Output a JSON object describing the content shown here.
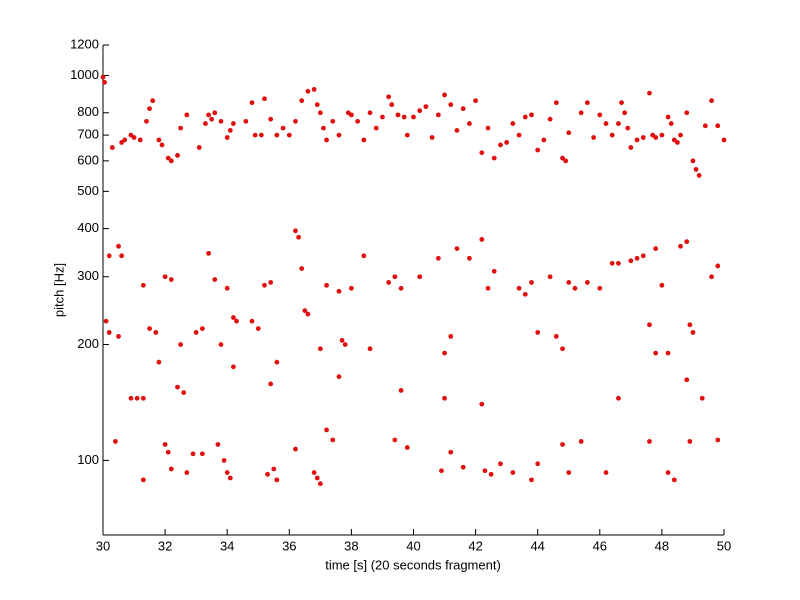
{
  "chart_data": {
    "type": "scatter",
    "xlabel": "time [s] (20 seconds fragment)",
    "ylabel": "pitch [Hz]",
    "color": "#e01010",
    "log_y": true,
    "xlim": [
      30,
      50
    ],
    "xticks": [
      30,
      32,
      34,
      36,
      38,
      40,
      42,
      44,
      46,
      48,
      50
    ],
    "ylim": [
      64,
      1200
    ],
    "yticks": [
      100,
      200,
      300,
      400,
      500,
      600,
      700,
      800,
      1000,
      1200
    ],
    "x": [
      30.0,
      30.05,
      30.3,
      30.6,
      30.7,
      30.9,
      31.0,
      31.2,
      31.4,
      31.5,
      31.6,
      31.8,
      31.9,
      32.1,
      32.2,
      32.4,
      32.5,
      32.7,
      33.1,
      33.3,
      33.4,
      33.5,
      33.6,
      33.8,
      34.0,
      34.1,
      34.2,
      34.6,
      34.8,
      34.9,
      35.1,
      35.2,
      35.4,
      35.6,
      35.8,
      36.0,
      36.2,
      36.4,
      36.6,
      36.8,
      36.9,
      37.0,
      37.1,
      37.2,
      37.4,
      37.6,
      37.9,
      38.0,
      38.2,
      38.4,
      38.6,
      38.8,
      39.0,
      39.2,
      39.3,
      39.5,
      39.7,
      39.8,
      40.0,
      40.2,
      40.4,
      40.6,
      40.8,
      41.0,
      41.2,
      41.4,
      41.6,
      41.8,
      42.0,
      42.2,
      42.4,
      42.6,
      42.8,
      43.0,
      43.2,
      43.4,
      43.6,
      43.8,
      44.0,
      44.2,
      44.4,
      44.6,
      44.8,
      44.9,
      45.0,
      45.4,
      45.6,
      45.8,
      46.0,
      46.2,
      46.4,
      46.6,
      46.7,
      46.8,
      46.9,
      47.0,
      47.2,
      47.4,
      47.6,
      47.7,
      47.8,
      48.0,
      48.2,
      48.3,
      48.4,
      48.5,
      48.6,
      48.8,
      49.0,
      49.1,
      49.2,
      49.4,
      49.6,
      49.8,
      50.0,
      30.2,
      30.5,
      30.6,
      31.3,
      31.5,
      31.7,
      32.0,
      32.2,
      32.5,
      33.0,
      33.2,
      33.4,
      33.6,
      33.8,
      34.0,
      34.2,
      34.3,
      34.8,
      35.0,
      35.2,
      35.4,
      35.6,
      36.2,
      36.3,
      36.4,
      36.5,
      36.6,
      37.0,
      37.2,
      37.6,
      37.7,
      37.8,
      38.0,
      38.4,
      38.6,
      39.2,
      39.4,
      39.6,
      40.2,
      40.8,
      41.0,
      41.2,
      41.4,
      41.8,
      42.2,
      42.4,
      42.6,
      43.4,
      43.6,
      43.8,
      44.0,
      44.4,
      44.6,
      44.8,
      45.0,
      45.2,
      45.6,
      46.0,
      46.4,
      46.6,
      47.0,
      47.2,
      47.4,
      47.6,
      47.8,
      48.0,
      48.2,
      48.6,
      48.8,
      48.9,
      49.0,
      49.6,
      49.8,
      30.1,
      30.2,
      30.5,
      30.4,
      30.9,
      31.1,
      31.3,
      31.3,
      31.8,
      32.0,
      32.1,
      32.2,
      32.4,
      32.6,
      32.7,
      32.9,
      33.2,
      33.7,
      33.9,
      34.0,
      34.1,
      34.2,
      35.3,
      35.4,
      35.5,
      35.6,
      36.2,
      36.8,
      36.9,
      37.0,
      37.2,
      37.4,
      37.6,
      39.4,
      39.6,
      39.8,
      40.9,
      41.0,
      41.2,
      41.6,
      42.2,
      42.3,
      42.5,
      42.8,
      43.2,
      43.8,
      44.0,
      44.8,
      45.0,
      45.4,
      46.2,
      46.6,
      47.6,
      47.8,
      48.2,
      48.4,
      48.8,
      48.9,
      49.3,
      49.8
    ],
    "y": [
      990,
      960,
      650,
      670,
      680,
      700,
      690,
      680,
      760,
      820,
      860,
      680,
      660,
      610,
      600,
      620,
      730,
      790,
      650,
      750,
      790,
      770,
      800,
      760,
      690,
      720,
      750,
      760,
      850,
      700,
      700,
      870,
      770,
      700,
      730,
      700,
      760,
      860,
      910,
      920,
      840,
      800,
      730,
      680,
      760,
      700,
      800,
      790,
      760,
      680,
      800,
      730,
      780,
      880,
      840,
      790,
      780,
      700,
      780,
      810,
      830,
      690,
      790,
      890,
      840,
      720,
      820,
      750,
      860,
      630,
      730,
      610,
      660,
      670,
      750,
      700,
      780,
      790,
      640,
      680,
      770,
      850,
      610,
      600,
      710,
      800,
      850,
      690,
      790,
      750,
      700,
      750,
      850,
      800,
      730,
      650,
      680,
      690,
      900,
      700,
      690,
      700,
      780,
      750,
      680,
      670,
      700,
      800,
      600,
      570,
      550,
      740,
      860,
      740,
      680,
      340,
      360,
      340,
      285,
      220,
      215,
      300,
      295,
      200,
      215,
      220,
      345,
      295,
      200,
      280,
      235,
      230,
      230,
      220,
      285,
      290,
      180,
      395,
      380,
      315,
      245,
      240,
      195,
      285,
      275,
      205,
      200,
      280,
      340,
      195,
      290,
      300,
      280,
      300,
      335,
      190,
      210,
      355,
      335,
      375,
      280,
      310,
      280,
      270,
      290,
      215,
      300,
      210,
      195,
      290,
      280,
      290,
      280,
      325,
      325,
      330,
      335,
      340,
      225,
      355,
      285,
      190,
      360,
      370,
      225,
      215,
      300,
      320,
      230,
      215,
      210,
      112,
      145,
      145,
      145,
      89,
      180,
      110,
      105,
      95,
      155,
      150,
      93,
      104,
      104,
      110,
      100,
      93,
      90,
      175,
      92,
      158,
      95,
      89,
      107,
      93,
      90,
      87,
      120,
      113,
      165,
      113,
      152,
      108,
      94,
      145,
      105,
      96,
      140,
      94,
      92,
      98,
      93,
      89,
      98,
      110,
      93,
      112,
      93,
      145,
      112,
      190,
      93,
      89,
      162,
      112,
      145,
      113
    ]
  }
}
